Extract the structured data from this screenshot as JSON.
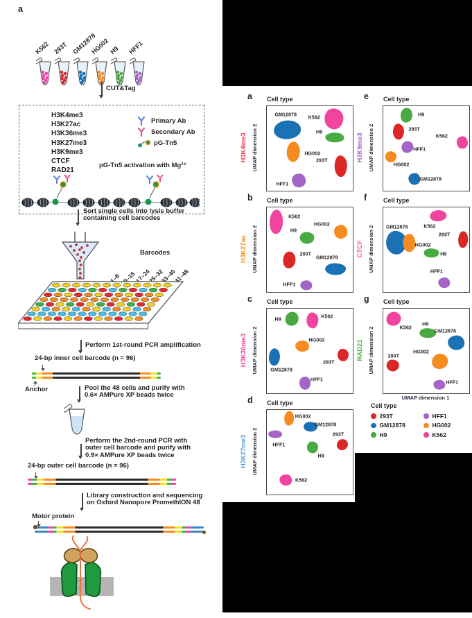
{
  "panel_a_label": "a",
  "workflow": {
    "cut_tag_label": "CUT&Tag",
    "tubes": [
      {
        "label": "K562",
        "color": "#f0449f"
      },
      {
        "label": "293T",
        "color": "#dc2727"
      },
      {
        "label": "GM12878",
        "color": "#1a72b5"
      },
      {
        "label": "HG002",
        "color": "#f68b1f"
      },
      {
        "label": "H9",
        "color": "#49a942"
      },
      {
        "label": "HFF1",
        "color": "#a465c6"
      }
    ],
    "targets": [
      "H3K4me3",
      "H3K27ac",
      "H3K36me3",
      "H3K27me3",
      "H3K9me3",
      "CTCF",
      "RAD21"
    ],
    "ab_legend": [
      {
        "label": "Primary Ab",
        "type": "antibody",
        "icon": "primary-antibody-icon",
        "color": "#5d7fd6"
      },
      {
        "label": "Secondary Ab",
        "type": "antibody",
        "icon": "secondary-antibody-icon",
        "color": "#e8537f"
      },
      {
        "label": "pG-Tn5",
        "type": "pgtn5",
        "icon": "pg-tn5-icon",
        "color": "#149a4c",
        "tip_color": "#f68b1f"
      }
    ],
    "activation_note": "pG-Tn5 activation with Mg²⁺",
    "sort_step": "Sort single cells into lysis buffer\ncontaining cell barcodes",
    "barcodes_label": "Barcodes",
    "barcode_ranges": [
      "1–8",
      "9–16",
      "17–24",
      "25–32",
      "33–40",
      "41–48"
    ],
    "plate_colors": [
      "#f2d11d",
      "#f68b1f",
      "#45c1e8",
      "#38b449",
      "#e8272d"
    ],
    "pcr1_step": "Perform 1st-round PCR amplification",
    "inner_barcode_label": "24-bp inner cell barcode (n = 96)",
    "anchor_label": "Anchor",
    "pool_step": "Pool the 48 cells and purify with\n0.6× AMPure XP beads twice",
    "pcr2_step": "Perform the 2nd-round PCR with\nouter cell barcode and purify with\n0.9× AMPure XP beads twice",
    "outer_barcode_label": "24-bp outer cell barcode (n = 96)",
    "library_step": "Library construction and sequencing\non Oxford Nanopore PromethION 48",
    "motor_protein_label": "Motor protein",
    "dna": {
      "inner_segments": [
        [
          "#38b449",
          3
        ],
        [
          "#f5df20",
          5
        ],
        [
          "#f68b1f",
          8
        ],
        [
          "#2b2b2b",
          68
        ],
        [
          "#f68b1f",
          8
        ],
        [
          "#f5df20",
          5
        ],
        [
          "#38b449",
          3
        ]
      ],
      "outer_segments": [
        [
          "#f0449f",
          3
        ],
        [
          "#38b449",
          3
        ],
        [
          "#f5df20",
          5
        ],
        [
          "#f68b1f",
          8
        ],
        [
          "#2b2b2b",
          62
        ],
        [
          "#f68b1f",
          8
        ],
        [
          "#f5df20",
          5
        ],
        [
          "#38b449",
          3
        ],
        [
          "#f0449f",
          3
        ]
      ],
      "library_segments": [
        [
          "#3b86c4",
          8
        ],
        [
          "#f0449f",
          3
        ],
        [
          "#38b449",
          2
        ],
        [
          "#f5df20",
          4
        ],
        [
          "#f68b1f",
          7
        ],
        [
          "#2b2b2b",
          52
        ],
        [
          "#f68b1f",
          7
        ],
        [
          "#f5df20",
          4
        ],
        [
          "#38b449",
          2
        ],
        [
          "#f0449f",
          3
        ],
        [
          "#3b86c4",
          8
        ]
      ],
      "motor_color": "#7a4a21"
    }
  },
  "legend": {
    "title": "Cell type",
    "entries": [
      {
        "label": "293T",
        "color": "#dc2727"
      },
      {
        "label": "GM12878",
        "color": "#1a72b5"
      },
      {
        "label": "H9",
        "color": "#49a942"
      },
      {
        "label": "HFF1",
        "color": "#a465c6"
      },
      {
        "label": "HG002",
        "color": "#f68b1f"
      },
      {
        "label": "K562",
        "color": "#f0449f"
      }
    ]
  },
  "chart_data": [
    {
      "id": "a",
      "type": "scatter",
      "assay": "H3K4me3",
      "assay_color": "#ee3a4d",
      "title": "Cell type",
      "ylabel": "UMAP dimension 2",
      "clusters": [
        {
          "name": "GM12878",
          "x": 0.24,
          "y": 0.28,
          "w": 0.32,
          "h": 0.22,
          "lx": 0.22,
          "ly": 0.1
        },
        {
          "name": "K562",
          "x": 0.78,
          "y": 0.15,
          "w": 0.22,
          "h": 0.24,
          "lx": 0.55,
          "ly": 0.13
        },
        {
          "name": "H9",
          "x": 0.79,
          "y": 0.37,
          "w": 0.22,
          "h": 0.11,
          "lx": 0.61,
          "ly": 0.3
        },
        {
          "name": "HG002",
          "x": 0.31,
          "y": 0.54,
          "w": 0.15,
          "h": 0.24,
          "lx": 0.53,
          "ly": 0.56
        },
        {
          "name": "293T",
          "x": 0.86,
          "y": 0.71,
          "w": 0.15,
          "h": 0.26,
          "lx": 0.64,
          "ly": 0.64
        },
        {
          "name": "HFF1",
          "x": 0.37,
          "y": 0.88,
          "w": 0.16,
          "h": 0.16,
          "lx": 0.18,
          "ly": 0.92
        }
      ]
    },
    {
      "id": "b",
      "type": "scatter",
      "assay": "H3K27ac",
      "assay_color": "#f68b1f",
      "title": "Cell type",
      "ylabel": "UMAP dimension 2",
      "clusters": [
        {
          "name": "K562",
          "x": 0.11,
          "y": 0.17,
          "w": 0.16,
          "h": 0.29,
          "lx": 0.32,
          "ly": 0.11
        },
        {
          "name": "H9",
          "x": 0.47,
          "y": 0.36,
          "w": 0.17,
          "h": 0.14,
          "lx": 0.31,
          "ly": 0.27
        },
        {
          "name": "HG002",
          "x": 0.86,
          "y": 0.29,
          "w": 0.16,
          "h": 0.16,
          "lx": 0.64,
          "ly": 0.2
        },
        {
          "name": "293T",
          "x": 0.26,
          "y": 0.62,
          "w": 0.14,
          "h": 0.2,
          "lx": 0.45,
          "ly": 0.55
        },
        {
          "name": "GM12878",
          "x": 0.8,
          "y": 0.73,
          "w": 0.24,
          "h": 0.14,
          "lx": 0.7,
          "ly": 0.59
        },
        {
          "name": "HFF1",
          "x": 0.46,
          "y": 0.92,
          "w": 0.14,
          "h": 0.11,
          "lx": 0.26,
          "ly": 0.91
        }
      ]
    },
    {
      "id": "c",
      "type": "scatter",
      "assay": "H3K36me3",
      "assay_color": "#f0449f",
      "title": "Cell type",
      "ylabel": "UMAP dimension 2",
      "clusters": [
        {
          "name": "H9",
          "x": 0.29,
          "y": 0.12,
          "w": 0.15,
          "h": 0.17,
          "lx": 0.13,
          "ly": 0.12
        },
        {
          "name": "K562",
          "x": 0.53,
          "y": 0.14,
          "w": 0.14,
          "h": 0.19,
          "lx": 0.7,
          "ly": 0.09
        },
        {
          "name": "HG002",
          "x": 0.41,
          "y": 0.44,
          "w": 0.16,
          "h": 0.13,
          "lx": 0.58,
          "ly": 0.37
        },
        {
          "name": "GM12878",
          "x": 0.09,
          "y": 0.57,
          "w": 0.13,
          "h": 0.21,
          "lx": 0.17,
          "ly": 0.72
        },
        {
          "name": "293T",
          "x": 0.89,
          "y": 0.55,
          "w": 0.13,
          "h": 0.15,
          "lx": 0.72,
          "ly": 0.63
        },
        {
          "name": "HFF1",
          "x": 0.44,
          "y": 0.88,
          "w": 0.13,
          "h": 0.15,
          "lx": 0.58,
          "ly": 0.84
        }
      ]
    },
    {
      "id": "d",
      "type": "scatter",
      "assay": "H3K27me3",
      "assay_color": "#4e9ed9",
      "title": "Cell type",
      "ylabel": "UMAP dimension 2",
      "clusters": [
        {
          "name": "HG002",
          "x": 0.26,
          "y": 0.1,
          "w": 0.11,
          "h": 0.17,
          "lx": 0.42,
          "ly": 0.07
        },
        {
          "name": "GM12878",
          "x": 0.51,
          "y": 0.2,
          "w": 0.16,
          "h": 0.11,
          "lx": 0.68,
          "ly": 0.17
        },
        {
          "name": "HFF1",
          "x": 0.1,
          "y": 0.29,
          "w": 0.16,
          "h": 0.09,
          "lx": 0.14,
          "ly": 0.41
        },
        {
          "name": "293T",
          "x": 0.88,
          "y": 0.41,
          "w": 0.13,
          "h": 0.13,
          "lx": 0.83,
          "ly": 0.29
        },
        {
          "name": "H9",
          "x": 0.53,
          "y": 0.44,
          "w": 0.13,
          "h": 0.14,
          "lx": 0.63,
          "ly": 0.54
        },
        {
          "name": "K562",
          "x": 0.22,
          "y": 0.83,
          "w": 0.14,
          "h": 0.13,
          "lx": 0.4,
          "ly": 0.83
        }
      ]
    },
    {
      "id": "e",
      "type": "scatter",
      "assay": "H3K9me3",
      "assay_color": "#a465c6",
      "title": "Cell type",
      "ylabel": "UMAP dimension 2",
      "clusters": [
        {
          "name": "H9",
          "x": 0.27,
          "y": 0.11,
          "w": 0.13,
          "h": 0.17,
          "lx": 0.44,
          "ly": 0.1
        },
        {
          "name": "293T",
          "x": 0.18,
          "y": 0.3,
          "w": 0.13,
          "h": 0.19,
          "lx": 0.36,
          "ly": 0.27
        },
        {
          "name": "K562",
          "x": 0.92,
          "y": 0.43,
          "w": 0.13,
          "h": 0.14,
          "lx": 0.68,
          "ly": 0.35
        },
        {
          "name": "HFF1",
          "x": 0.28,
          "y": 0.48,
          "w": 0.14,
          "h": 0.14,
          "lx": 0.42,
          "ly": 0.51
        },
        {
          "name": "HG002",
          "x": 0.09,
          "y": 0.6,
          "w": 0.13,
          "h": 0.13,
          "lx": 0.21,
          "ly": 0.69
        },
        {
          "name": "GM12878",
          "x": 0.36,
          "y": 0.86,
          "w": 0.14,
          "h": 0.14,
          "lx": 0.55,
          "ly": 0.86
        }
      ]
    },
    {
      "id": "f",
      "type": "scatter",
      "assay": "CTCF",
      "assay_color": "#ef5b74",
      "title": "Cell type",
      "ylabel": "UMAP dimension 2",
      "clusters": [
        {
          "name": "K562",
          "x": 0.64,
          "y": 0.1,
          "w": 0.19,
          "h": 0.13,
          "lx": 0.54,
          "ly": 0.22
        },
        {
          "name": "GM12878",
          "x": 0.15,
          "y": 0.42,
          "w": 0.24,
          "h": 0.28,
          "lx": 0.16,
          "ly": 0.23
        },
        {
          "name": "HG002",
          "x": 0.3,
          "y": 0.42,
          "w": 0.14,
          "h": 0.21,
          "lx": 0.46,
          "ly": 0.44
        },
        {
          "name": "293T",
          "x": 0.93,
          "y": 0.38,
          "w": 0.11,
          "h": 0.19,
          "lx": 0.71,
          "ly": 0.32
        },
        {
          "name": "H9",
          "x": 0.56,
          "y": 0.54,
          "w": 0.17,
          "h": 0.11,
          "lx": 0.7,
          "ly": 0.55
        },
        {
          "name": "HFF1",
          "x": 0.71,
          "y": 0.89,
          "w": 0.14,
          "h": 0.13,
          "lx": 0.62,
          "ly": 0.75
        }
      ]
    },
    {
      "id": "g",
      "type": "scatter",
      "assay": "RAD21",
      "assay_color": "#56b44b",
      "title": "Cell type",
      "ylabel": "UMAP dimension 2",
      "xlabel": "UMAP dimension 1",
      "clusters": [
        {
          "name": "K562",
          "x": 0.12,
          "y": 0.12,
          "w": 0.17,
          "h": 0.17,
          "lx": 0.26,
          "ly": 0.22
        },
        {
          "name": "H9",
          "x": 0.52,
          "y": 0.29,
          "w": 0.19,
          "h": 0.11,
          "lx": 0.49,
          "ly": 0.18
        },
        {
          "name": "GM12878",
          "x": 0.85,
          "y": 0.4,
          "w": 0.19,
          "h": 0.17,
          "lx": 0.72,
          "ly": 0.26
        },
        {
          "name": "HG002",
          "x": 0.66,
          "y": 0.62,
          "w": 0.19,
          "h": 0.18,
          "lx": 0.44,
          "ly": 0.51
        },
        {
          "name": "293T",
          "x": 0.11,
          "y": 0.67,
          "w": 0.15,
          "h": 0.14,
          "lx": 0.12,
          "ly": 0.56
        },
        {
          "name": "HFF1",
          "x": 0.65,
          "y": 0.9,
          "w": 0.14,
          "h": 0.12,
          "lx": 0.8,
          "ly": 0.87
        }
      ]
    }
  ]
}
